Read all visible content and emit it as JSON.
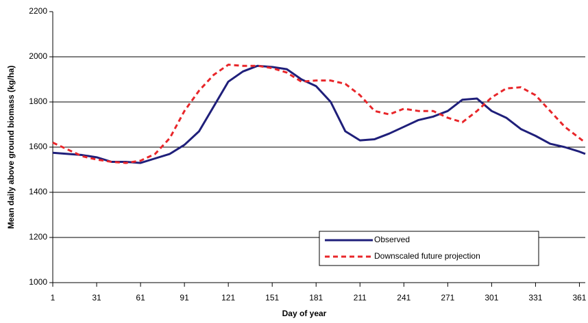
{
  "chart_data": {
    "type": "line",
    "x_label": "Day of year",
    "y_label": "Mean daily above ground biomass (kg/ha)",
    "x": [
      1,
      11,
      21,
      31,
      41,
      51,
      61,
      71,
      81,
      91,
      101,
      111,
      121,
      131,
      141,
      151,
      161,
      171,
      181,
      191,
      201,
      211,
      221,
      231,
      241,
      251,
      261,
      271,
      281,
      291,
      301,
      311,
      321,
      331,
      341,
      351,
      361,
      365
    ],
    "series": [
      {
        "name": "Observed",
        "color": "#1f1f7a",
        "dash": false,
        "values": [
          1575,
          1570,
          1565,
          1555,
          1535,
          1535,
          1530,
          1550,
          1570,
          1610,
          1670,
          1780,
          1890,
          1935,
          1960,
          1955,
          1945,
          1900,
          1870,
          1800,
          1670,
          1630,
          1635,
          1660,
          1690,
          1720,
          1735,
          1760,
          1810,
          1815,
          1760,
          1730,
          1680,
          1650,
          1615,
          1600,
          1580,
          1570
        ]
      },
      {
        "name": "Downscaled future projection",
        "color": "#e8262a",
        "dash": true,
        "values": [
          1620,
          1590,
          1560,
          1545,
          1535,
          1530,
          1540,
          1570,
          1640,
          1760,
          1850,
          1920,
          1965,
          1960,
          1960,
          1950,
          1930,
          1890,
          1895,
          1895,
          1880,
          1830,
          1760,
          1745,
          1770,
          1760,
          1760,
          1730,
          1710,
          1760,
          1820,
          1860,
          1865,
          1830,
          1760,
          1690,
          1640,
          1620
        ]
      }
    ],
    "xlim": [
      1,
      365
    ],
    "xticks": [
      1,
      31,
      61,
      91,
      121,
      151,
      181,
      211,
      241,
      271,
      301,
      331,
      361
    ],
    "ylim": [
      1000,
      2200
    ],
    "yticks": [
      1000,
      1200,
      1400,
      1600,
      1800,
      2000,
      2200
    ],
    "grid": true,
    "legend": "bottom-right"
  }
}
